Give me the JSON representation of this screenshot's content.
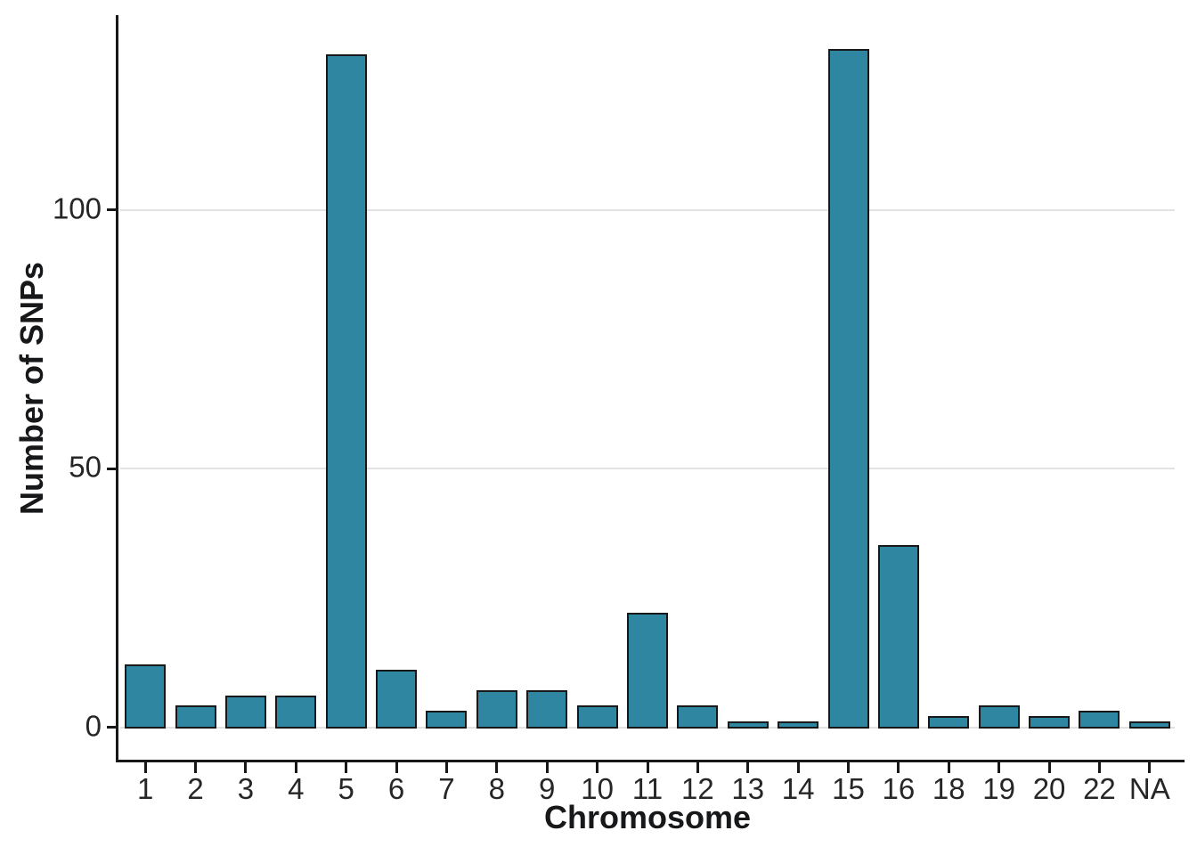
{
  "chart_data": {
    "type": "bar",
    "title": "",
    "xlabel": "Chromosome",
    "ylabel": "Number of SNPs",
    "categories": [
      "1",
      "2",
      "3",
      "4",
      "5",
      "6",
      "7",
      "8",
      "9",
      "10",
      "11",
      "12",
      "13",
      "14",
      "15",
      "16",
      "18",
      "19",
      "20",
      "22",
      "NA"
    ],
    "values": [
      12,
      4,
      6,
      6,
      130,
      11,
      3,
      7,
      7,
      4,
      22,
      4,
      1,
      1,
      131,
      35,
      2,
      4,
      2,
      3,
      1
    ],
    "yticks": [
      0,
      50,
      100
    ],
    "ytick_labels": [
      "0",
      "50",
      "100"
    ],
    "ylim": [
      -6.6,
      137.7
    ],
    "grid": "horizontal",
    "legend": "none",
    "colors": {
      "background": "#ffffff",
      "bar_fill": "#2e86a1",
      "bar_edge": "#17181a",
      "gridline": "#e2e2e2",
      "axis_line": "#17181a",
      "tick_mark": "#17181a",
      "tick_label": "#262626",
      "axis_title": "#17181a"
    }
  }
}
